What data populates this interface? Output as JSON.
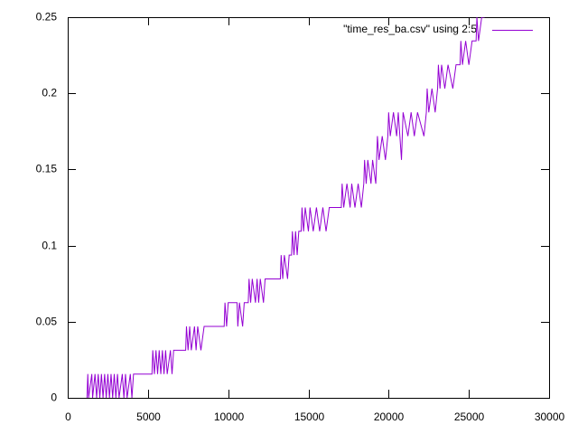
{
  "chart_data": {
    "type": "line",
    "xlim": [
      0,
      30000
    ],
    "xticks": [
      0,
      5000,
      10000,
      15000,
      20000,
      25000,
      30000
    ],
    "ylim": [
      0,
      0.25
    ],
    "yticks": [
      0,
      0.05,
      0.1,
      0.15,
      0.2,
      0.25
    ],
    "legend": "top-right",
    "series": [
      {
        "name": "\"time_res_ba.csv\" using 2:5",
        "color": "#9400d3",
        "x": [
          1200,
          1250,
          1300,
          1500,
          1550,
          1700,
          1800,
          1900,
          2000,
          2100,
          2200,
          2300,
          2400,
          2500,
          2600,
          2700,
          2800,
          2900,
          3000,
          3100,
          3200,
          3400,
          3500,
          3600,
          3700,
          3900,
          4000,
          4100,
          5250,
          5300,
          5400,
          5500,
          5600,
          5700,
          5800,
          5900,
          6000,
          6100,
          6200,
          6400,
          6500,
          6600,
          7350,
          7400,
          7500,
          7600,
          7700,
          7900,
          8000,
          8100,
          8300,
          8500,
          9750,
          9800,
          9900,
          10000,
          10550,
          10600,
          10700,
          10900,
          11000,
          11250,
          11300,
          11400,
          11500,
          11700,
          11800,
          11900,
          12000,
          12200,
          12300,
          13250,
          13300,
          13400,
          13500,
          13700,
          13800,
          13950,
          14000,
          14100,
          14200,
          14300,
          14400,
          14550,
          14600,
          14700,
          14800,
          15000,
          15100,
          15300,
          15500,
          15700,
          15900,
          16100,
          16300,
          17050,
          17100,
          17200,
          17400,
          17600,
          17700,
          17900,
          18100,
          18300,
          18450,
          18500,
          18600,
          18700,
          18900,
          19000,
          19200,
          19250,
          19300,
          19400,
          19600,
          19800,
          19950,
          20000,
          20100,
          20300,
          20500,
          20600,
          20800,
          20900,
          21200,
          21400,
          21600,
          21800,
          22200,
          22350,
          22400,
          22500,
          22700,
          22900,
          23050,
          23100,
          23200,
          23300,
          23500,
          23700,
          24000,
          24200,
          24450,
          24500,
          24600,
          24800,
          25000,
          25200,
          25450,
          25500,
          25600,
          25800,
          25950,
          26000
        ],
        "values": [
          0,
          0.015625,
          0,
          0.015625,
          0,
          0.015625,
          0,
          0.015625,
          0,
          0.015625,
          0,
          0.015625,
          0,
          0.015625,
          0,
          0.015625,
          0,
          0.015625,
          0,
          0.015625,
          0,
          0.015625,
          0,
          0.015625,
          0,
          0.015625,
          0,
          0.015625,
          0.015625,
          0.03125,
          0.015625,
          0.03125,
          0.015625,
          0.03125,
          0.015625,
          0.03125,
          0.015625,
          0.03125,
          0.015625,
          0.03125,
          0.015625,
          0.03125,
          0.03125,
          0.046875,
          0.03125,
          0.046875,
          0.03125,
          0.046875,
          0.03125,
          0.046875,
          0.03125,
          0.046875,
          0.046875,
          0.0625,
          0.046875,
          0.0625,
          0.0625,
          0.046875,
          0.0625,
          0.046875,
          0.0625,
          0.0625,
          0.078125,
          0.0625,
          0.078125,
          0.0625,
          0.078125,
          0.0625,
          0.078125,
          0.0625,
          0.078125,
          0.078125,
          0.09375,
          0.078125,
          0.09375,
          0.078125,
          0.09375,
          0.09375,
          0.109375,
          0.09375,
          0.109375,
          0.09375,
          0.109375,
          0.109375,
          0.125,
          0.109375,
          0.125,
          0.109375,
          0.125,
          0.109375,
          0.125,
          0.109375,
          0.125,
          0.109375,
          0.125,
          0.125,
          0.140625,
          0.125,
          0.140625,
          0.125,
          0.140625,
          0.125,
          0.140625,
          0.125,
          0.140625,
          0.15625,
          0.140625,
          0.15625,
          0.140625,
          0.15625,
          0.140625,
          0.15625,
          0.171875,
          0.15625,
          0.171875,
          0.15625,
          0.171875,
          0.1875,
          0.171875,
          0.1875,
          0.171875,
          0.1875,
          0.15625,
          0.1875,
          0.171875,
          0.1875,
          0.171875,
          0.1875,
          0.171875,
          0.1875,
          0.203125,
          0.1875,
          0.203125,
          0.1875,
          0.203125,
          0.21875,
          0.203125,
          0.21875,
          0.203125,
          0.21875,
          0.203125,
          0.21875,
          0.21875,
          0.234375,
          0.21875,
          0.234375,
          0.21875,
          0.234375,
          0.234375,
          0.25,
          0.234375,
          0.25,
          0.25,
          0.265625
        ]
      }
    ]
  }
}
